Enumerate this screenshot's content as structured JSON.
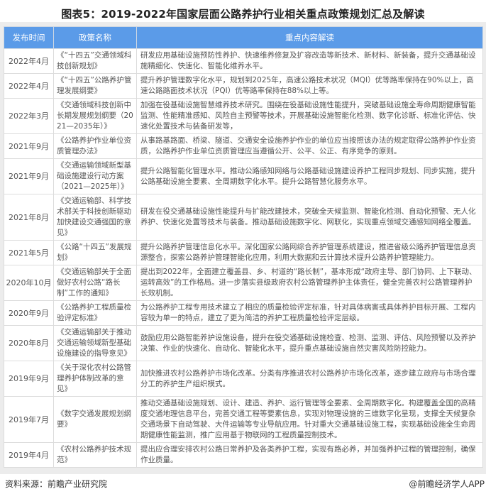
{
  "title": "图表5：2019-2022年国家层面公路养护行业相关重点政策规划汇总及解读",
  "table": {
    "headers": [
      "发布时间",
      "政策名称",
      "重点内容解读"
    ],
    "rows": [
      {
        "date": "2022年4月",
        "name": "《“十四五”交通领域科技创新规划》",
        "content": "研发应用基础设施预防性养护、快速维养修复及扩容改造等新技术、新材料、新装备，提升交通基础设施精细化、快速化、智能化维养水平。"
      },
      {
        "date": "2022年4月",
        "name": "《“十四五”公路养护管理发展纲要》",
        "content": "提升养护管理数字化水平，规划到2025年，高速公路技术状况（MQI）优等路率保持在90%以上，高速公路路面技术状况（PQI）优等路率保持在88%以上等。"
      },
      {
        "date": "2022年3月",
        "name": "《交通领域科技创新中长期发展规划纲要（2021—2035年）》",
        "content": "加强在役基础设施智慧维养技术研究。围绕在役基础设施性能提升，突破基础设施全寿命周期健康智能监测、性能精准感知、风险自主预警等技术，开展基础设施智能化检测、数字化诊断、标准化评估、快速化处置技术与装备研发等，"
      },
      {
        "date": "2021年9月",
        "name": "《公路养护作业单位资质管理办法》",
        "content": "从事路基路面、桥梁、隧道、交通安全设施养护作业的单位应当按照该办法的规定取得公路养护作业资质，公路养护作业单位资质管理应当遵循公开、公平、公正、有序竞争的原则。"
      },
      {
        "date": "2021年9月",
        "name": "《交通运输领域新型基础设施建设行动方案（2021—2025年）》",
        "content": "提升公路智能化管理水平。推动公路感知网络与公路基础设施建设养护工程同步规划、同步实施，提升公路基础设施全要素、全周期数字化水平。提升公路智慧化服务水平。"
      },
      {
        "date": "2021年8月",
        "name": "《交通运输部、科学技术部关于科技创新驱动加快建设交通强国的意见》",
        "content": "研发在役交通基础设施性能提升与扩能改建技术，突破全天候监测、智能化检测、自动化预警、无人化养护、快速化处置等技术与装备。推动基础设施数字化、网联化，实现重点领域交通感知网络全覆盖。"
      },
      {
        "date": "2021年5月",
        "name": "《公路“十四五”发展规划》",
        "content": "提升公路养护管理信息化水平。深化国家公路网综合养护管理系统建设，推进省级公路养护管理信息资源整合，探索公路养护管理智能化应用，利用大数据和云计算技术提升公路养护管理能力。"
      },
      {
        "date": "2020年10月",
        "name": "《交通运输部关于全面做好农村公路“路长制”工作的通知》",
        "content": "提出到2022年，全面建立覆盖县、乡、村道的“路长制”，基本形成“政府主导、部门协同、上下联动、运转高效”的工作格局。进一步落实县级政府农村公路管理养护主体责任，健全完善农村公路管理养护长效机制。"
      },
      {
        "date": "2020年9月",
        "name": "《公路养护工程质量检验评定标准》",
        "content": "为公路养护工程专用技术建立了相应的质量检验评定标准，针对具体病害或具体养护目标开展、工程内容较为单一的特点，建立了更为简洁的养护工程质量检验评定层级。"
      },
      {
        "date": "2020年8月",
        "name": "《交通运输部关于推动交通运输领域新型基础设施建设的指导意见》",
        "content": "鼓励应用公路智能养护设施设备，提升在役交通基础设施检查、检测、监测、评估、风险预警以及养护决策、作业的快速化、自动化、智能化水平，提升重点基础设施自然灾害风险防控能力。"
      },
      {
        "date": "2019年9月",
        "name": "《关于深化农村公路管理养护体制改革的意见》",
        "content": "加快推进农村公路养护市场化改革。分类有序推进农村公路养护市场化改革，逐步建立政府与市场合理分工的养护生产组织模式。"
      },
      {
        "date": "2019年7月",
        "name": "《数字交通发展规划纲要》",
        "content": "推动交通基础设施规划、设计、建造、养护、运行管理等全要素、全周期数字化。构建覆盖全国的高精度交通地理信息平台，完善交通工程等要素信息，实现对物理设施的三维数字化呈现，支撑全天候复杂交通场景下自动驾驶、大件运输等专业导航应用。针对重大交通基础设施工程，实现基础设施全生命周期健康性能监测，推广应用基于物联网的工程质量控制技术。"
      },
      {
        "date": "2019年4月",
        "name": "《农村公路养护技术规范》",
        "content": "提出应合理安排农村公路日常养护及各类养护工程，实现有路必养，并加强养护过程的管理控制，确保作业质量。"
      }
    ]
  },
  "footer": {
    "source": "资料来源：前瞻产业研究院",
    "brand": "@前瞻经济学人APP"
  },
  "colors": {
    "header_bg": "#5b9be8",
    "frame_bg": "#ececec"
  }
}
